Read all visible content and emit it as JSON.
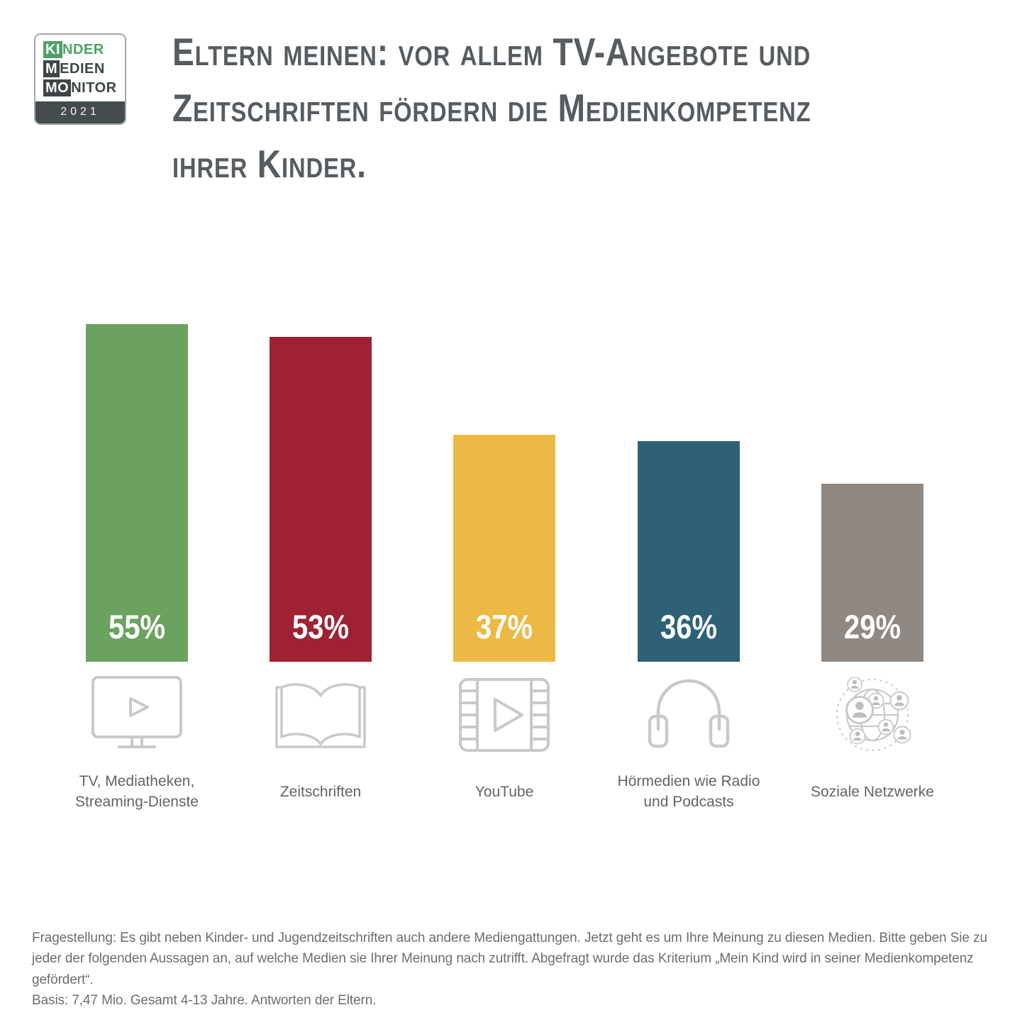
{
  "logo": {
    "line1_boxed": "KI",
    "line1_rest": "NDER",
    "line2_boxed": "M",
    "line2_rest": "EDIEN",
    "line3_boxed": "MO",
    "line3_rest": "NITOR",
    "year": "2021",
    "green": "#4FA167",
    "dark": "#3E4546"
  },
  "title": "Eltern meinen: vor allem TV-Angebote und Zeitschriften fördern die Medienkompetenz ihrer Kinder.",
  "chart_data": {
    "type": "bar",
    "title": "Eltern meinen: vor allem TV-Angebote und Zeitschriften fördern die Medienkompetenz ihrer Kinder.",
    "categories": [
      "TV, Mediatheken, Streaming-Dienste",
      "Zeitschriften",
      "YouTube",
      "Hörmedien wie Radio und Podcasts",
      "Soziale Netzwerke"
    ],
    "values": [
      55,
      53,
      37,
      36,
      29
    ],
    "value_labels": [
      "55%",
      "53%",
      "37%",
      "36%",
      "29%"
    ],
    "unit": "%",
    "colors": [
      "#6CA25F",
      "#9E2134",
      "#ECB945",
      "#2E6176",
      "#8F8883"
    ],
    "icons": [
      "tv-icon",
      "magazine-icon",
      "film-play-icon",
      "headphones-icon",
      "social-network-icon"
    ],
    "ylim": [
      0,
      60
    ],
    "grid": false,
    "legend": "none",
    "value_label_color": "#FFFFFF"
  },
  "footer": {
    "fragestellung": "Fragestellung: Es gibt neben Kinder- und Jugendzeitschriften auch andere Mediengattungen. Jetzt geht es um Ihre Meinung zu diesen Medien. Bitte geben Sie zu jeder der folgenden Aussagen an, auf welche Medien sie Ihrer Meinung nach zutrifft. Abgefragt wurde das Kriterium „Mein Kind wird in seiner Medienkompetenz gefördert“.",
    "basis": "Basis: 7,47 Mio. Gesamt 4-13 Jahre. Antworten der Eltern."
  }
}
